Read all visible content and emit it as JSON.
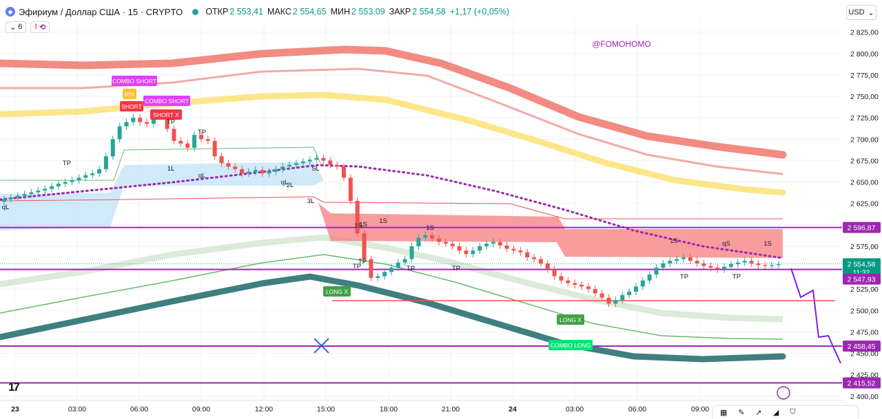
{
  "header": {
    "icon": "ethereum-icon",
    "title": "Эфириум / Доллар США · 15 · CRYPTO",
    "open_label": "ОТКР",
    "open_value": "2 553,41",
    "high_label": "МАКС",
    "high_value": "2 554,65",
    "low_label": "МИН",
    "low_value": "2 553,09",
    "close_label": "ЗАКР",
    "close_value": "2 554,58",
    "change": "+1,17 (+0,05%)",
    "indicator_count": "6",
    "currency": "USD"
  },
  "colors": {
    "up": "#26a69a",
    "down": "#ef5350",
    "purple": "#9c27b0",
    "red_band": "#f28b82",
    "yellow_band": "#fde68a",
    "teal_band": "#3f7f7f"
  },
  "watermark": "@FOMOHOMO",
  "price_axis": [
    "2 825,00",
    "2 800,00",
    "2 775,00",
    "2 750,00",
    "2 725,00",
    "2 700,00",
    "2 675,00",
    "2 650,00",
    "2 625,00",
    "2 575,00",
    "2 525,00",
    "2 500,00",
    "2 475,00",
    "2 450,00",
    "2 425,00",
    "2 400,00"
  ],
  "time_axis": [
    "23",
    "03:00",
    "06:00",
    "09:00",
    "12:00",
    "15:00",
    "18:00",
    "21:00",
    "24",
    "03:00",
    "06:00",
    "09:00"
  ],
  "price_tags": {
    "level_high": "2 596,87",
    "current": "2 554,58",
    "countdown": "11:32",
    "level_mid": "2 547,93",
    "level_low": "2 458,45",
    "level_bottom": "2 415,52"
  },
  "signals": {
    "combo_short_1": "COMBO SHORT",
    "rsi": "RSI",
    "short": "SHORT",
    "combo_short_2": "COMBO SHORT",
    "short_x": "SHORT X",
    "long_x_1": "LONG X",
    "long_x_2": "LONG X",
    "combo_long": "COMBO LONG"
  },
  "marks": [
    "TP",
    "TP",
    "TP",
    "TP",
    "TP",
    "TP",
    "TP",
    "TP",
    "TP",
    "1L",
    "qL",
    "qL",
    "qL",
    "2L",
    "3L",
    "SL",
    "1S",
    "1S",
    "qS",
    "1S",
    "1S",
    "1S",
    "1S"
  ],
  "chart_data": {
    "type": "candlestick",
    "title": "Эфириум / Доллар США · 15 · CRYPTO",
    "ylim": [
      2395,
      2840
    ],
    "x_labels": [
      "23",
      "03:00",
      "06:00",
      "09:00",
      "12:00",
      "15:00",
      "18:00",
      "21:00",
      "24",
      "03:00",
      "06:00",
      "09:00"
    ],
    "levels": [
      2596.87,
      2547.93,
      2458.45,
      2415.52
    ],
    "last_price": 2554.58,
    "close_series": [
      2630,
      2632,
      2634,
      2636,
      2638,
      2640,
      2642,
      2645,
      2648,
      2650,
      2652,
      2655,
      2658,
      2660,
      2665,
      2680,
      2700,
      2715,
      2720,
      2725,
      2720,
      2718,
      2730,
      2728,
      2712,
      2698,
      2695,
      2690,
      2705,
      2700,
      2698,
      2680,
      2672,
      2668,
      2665,
      2660,
      2662,
      2664,
      2660,
      2662,
      2665,
      2668,
      2670,
      2672,
      2674,
      2676,
      2678,
      2675,
      2670,
      2668,
      2655,
      2628,
      2590,
      2560,
      2538,
      2540,
      2545,
      2550,
      2556,
      2560,
      2575,
      2585,
      2588,
      2584,
      2580,
      2578,
      2575,
      2570,
      2566,
      2570,
      2575,
      2578,
      2580,
      2576,
      2572,
      2570,
      2568,
      2562,
      2560,
      2555,
      2548,
      2540,
      2535,
      2532,
      2530,
      2528,
      2525,
      2520,
      2515,
      2508,
      2512,
      2518,
      2522,
      2528,
      2535,
      2542,
      2550,
      2555,
      2558,
      2560,
      2562,
      2558,
      2555,
      2552,
      2550,
      2548,
      2551,
      2554,
      2556,
      2558,
      2555,
      2553,
      2552,
      2553,
      2554
    ]
  }
}
